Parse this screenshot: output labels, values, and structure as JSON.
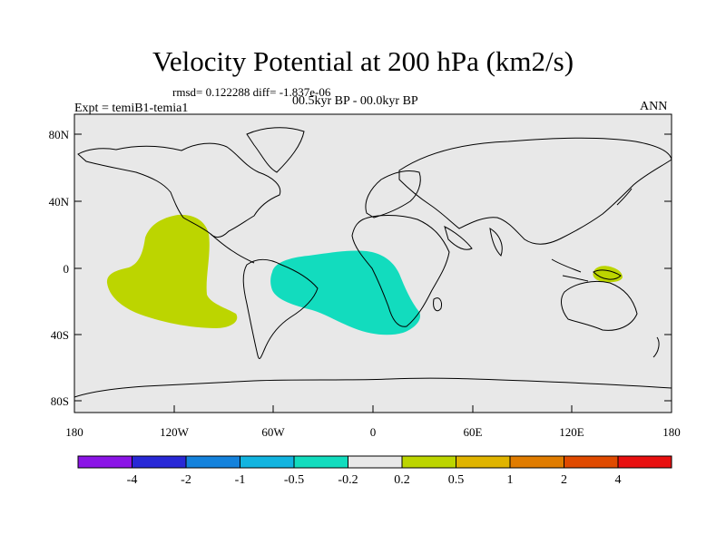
{
  "title": "Velocity Potential at 200 hPa (km2/s)",
  "stats": "rmsd= 0.122288 diff= -1.837e-06",
  "expt": "Expt = temiB1-temia1",
  "period": "00.5kyr BP - 00.0kyr BP",
  "season": "ANN",
  "colors": {
    "background": "#e8e8e8",
    "negative_anomaly": "#12dcbe",
    "positive_anomaly": "#bcd500",
    "coast": "#000000"
  },
  "axes": {
    "y_ticks": [
      "80N",
      "40N",
      "0",
      "40S",
      "80S"
    ],
    "x_ticks": [
      "180",
      "120W",
      "60W",
      "0",
      "60E",
      "120E",
      "180"
    ]
  },
  "colorbar": {
    "colors": [
      "#8b14e6",
      "#2828d6",
      "#1482dc",
      "#12b4e0",
      "#12dcbe",
      "#e8e8e8",
      "#bcd500",
      "#e0b400",
      "#e07c00",
      "#e04a00",
      "#e81010"
    ],
    "labels": [
      "-4",
      "-2",
      "-1",
      "-0.5",
      "-0.2",
      "0.2",
      "0.5",
      "1",
      "2",
      "4"
    ]
  },
  "regions": [
    {
      "name": "eastern-pacific-positive",
      "level": "0.2 to 0.5"
    },
    {
      "name": "south-atlantic-negative",
      "level": "-0.5 to -0.2"
    },
    {
      "name": "new-guinea-positive",
      "level": "0.2 to 0.5"
    }
  ]
}
